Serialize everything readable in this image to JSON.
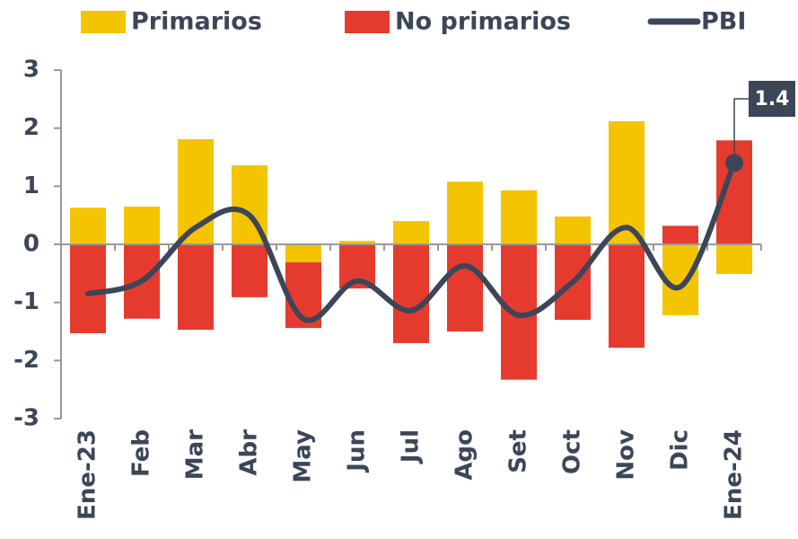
{
  "chart_data": {
    "type": "bar",
    "categories": [
      "Ene-23",
      "Feb",
      "Mar",
      "Abr",
      "May",
      "Jun",
      "Jul",
      "Ago",
      "Set",
      "Oct",
      "Nov",
      "Dic",
      "Ene-24"
    ],
    "series": [
      {
        "name": "Primarios",
        "type": "bar",
        "color": "#f5c400",
        "values": [
          0.63,
          0.65,
          1.81,
          1.36,
          -0.31,
          0.06,
          0.4,
          1.08,
          0.93,
          0.48,
          2.12,
          -1.22,
          -0.51
        ]
      },
      {
        "name": "No primarios",
        "type": "bar",
        "color": "#e53b2e",
        "values": [
          -1.53,
          -1.28,
          -1.47,
          -0.91,
          -1.13,
          -0.76,
          -1.7,
          -1.5,
          -2.33,
          -1.3,
          -1.78,
          0.32,
          1.79
        ]
      },
      {
        "name": "PBI",
        "type": "line",
        "color": "#3b4658",
        "values": [
          -0.85,
          -0.63,
          0.29,
          0.5,
          -1.28,
          -0.63,
          -1.14,
          -0.37,
          -1.22,
          -0.65,
          0.29,
          -0.73,
          1.4
        ],
        "value_labels": [
          null,
          null,
          null,
          null,
          null,
          null,
          null,
          null,
          null,
          null,
          null,
          null,
          "1.4"
        ]
      }
    ],
    "ylim": [
      -3,
      3
    ],
    "yticks": [
      3,
      2,
      1,
      0,
      -1,
      -2,
      -3
    ],
    "stacked": true,
    "legend": "top"
  }
}
